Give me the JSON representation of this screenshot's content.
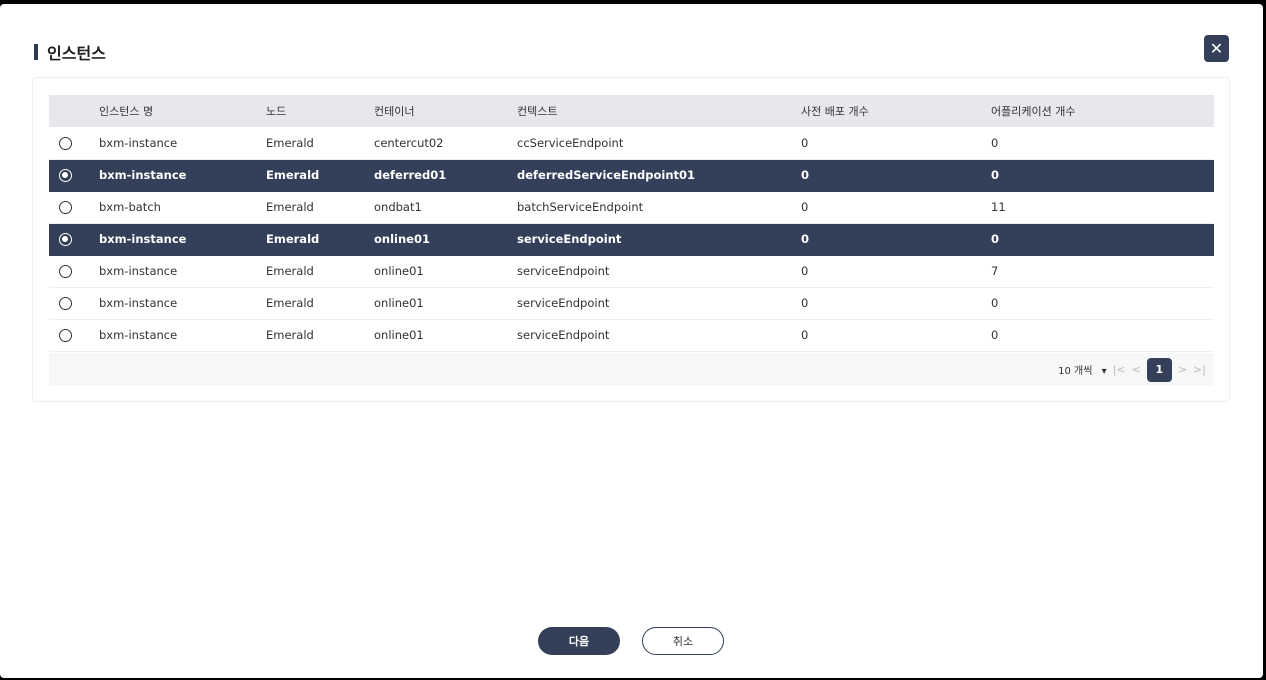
{
  "title": "인스턴스",
  "columns": [
    "인스턴스 명",
    "노드",
    "컨테이너",
    "컨텍스트",
    "사전 배포 개수",
    "어플리케이션 개수"
  ],
  "rows": [
    {
      "selected": false,
      "cells": [
        "bxm-instance",
        "Emerald",
        "centercut02",
        "ccServiceEndpoint",
        "0",
        "0"
      ]
    },
    {
      "selected": true,
      "cells": [
        "bxm-instance",
        "Emerald",
        "deferred01",
        "deferredServiceEndpoint01",
        "0",
        "0"
      ]
    },
    {
      "selected": false,
      "cells": [
        "bxm-batch",
        "Emerald",
        "ondbat1",
        "batchServiceEndpoint",
        "0",
        "11"
      ]
    },
    {
      "selected": true,
      "cells": [
        "bxm-instance",
        "Emerald",
        "online01",
        "serviceEndpoint",
        "0",
        "0"
      ]
    },
    {
      "selected": false,
      "cells": [
        "bxm-instance",
        "Emerald",
        "online01",
        "serviceEndpoint",
        "0",
        "7"
      ]
    },
    {
      "selected": false,
      "cells": [
        "bxm-instance",
        "Emerald",
        "online01",
        "serviceEndpoint",
        "0",
        "0"
      ]
    },
    {
      "selected": false,
      "cells": [
        "bxm-instance",
        "Emerald",
        "online01",
        "serviceEndpoint",
        "0",
        "0"
      ]
    }
  ],
  "pager": {
    "page_size": "10 개씩",
    "current_page": "1"
  },
  "buttons": {
    "next": "다음",
    "cancel": "취소"
  },
  "colors": {
    "accent": "#34405a"
  }
}
